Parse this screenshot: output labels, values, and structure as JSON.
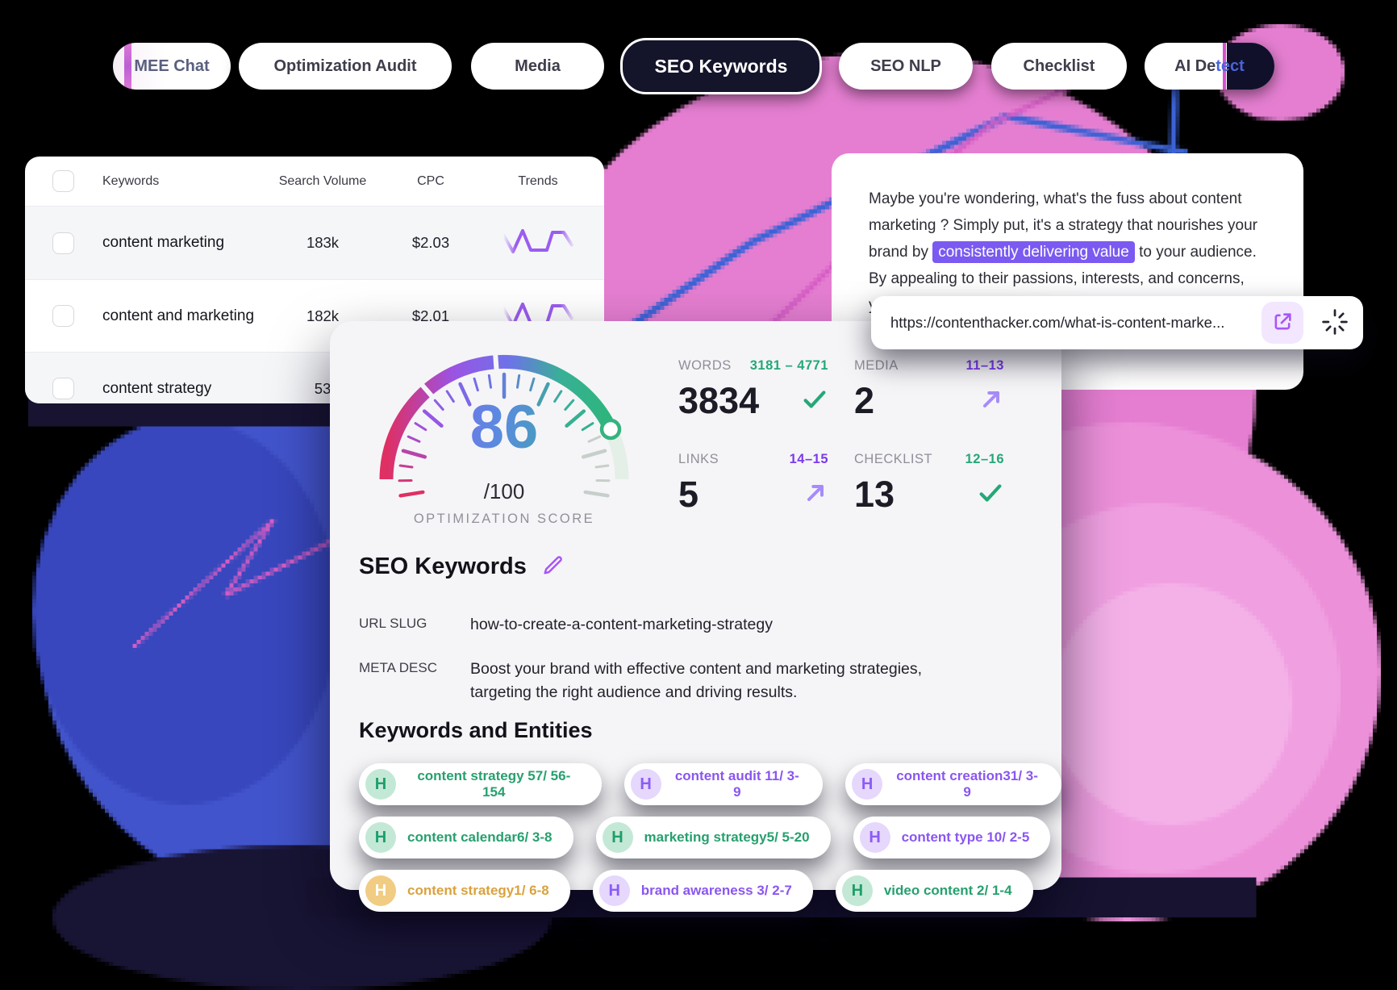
{
  "tabs": [
    {
      "label": "MEE Chat"
    },
    {
      "label": "Optimization Audit"
    },
    {
      "label": "Media"
    },
    {
      "label": "SEO Keywords"
    },
    {
      "label": "SEO NLP"
    },
    {
      "label": "Checklist"
    },
    {
      "label": "AI Detect",
      "glitch_a": "AI De",
      "glitch_b": "tect"
    }
  ],
  "keywords_table": {
    "columns": [
      "Keywords",
      "Search Volume",
      "CPC",
      "Trends"
    ],
    "rows": [
      {
        "keyword": "content marketing",
        "search_volume": "183k",
        "cpc": "$2.03"
      },
      {
        "keyword": "content and marketing",
        "search_volume": "182k",
        "cpc": "$2.01"
      },
      {
        "keyword": "content strategy",
        "search_volume": "53"
      }
    ]
  },
  "article_preview": {
    "text_before": "Maybe you're wondering, what's the fuss about content marketing ? Simply put, it's a strategy that nourishes your brand by ",
    "highlight": "consistently delivering value",
    "text_after": " to your audience. By appealing to their passions, interests, and concerns, you strengthen the bond between you and your customers. In essence, content ma"
  },
  "url_bar": {
    "url": "https://contenthacker.com/what-is-content-marke..."
  },
  "score_card": {
    "gauge": {
      "score": "86",
      "denominator": "/100",
      "label": "OPTIMIZATION SCORE",
      "percent": 86
    },
    "stats": [
      {
        "label": "WORDS",
        "range": "3181 – 4771",
        "value": "3834",
        "status": "check"
      },
      {
        "label": "MEDIA",
        "range": "11–13",
        "value": "2",
        "status": "trend-up"
      },
      {
        "label": "LINKS",
        "range": "14–15",
        "value": "5",
        "status": "trend-up"
      },
      {
        "label": "CHECKLIST",
        "range": "12–16",
        "value": "13",
        "status": "check"
      }
    ],
    "seo_section": {
      "title": "SEO Keywords",
      "url_slug_label": "URL SLUG",
      "url_slug": "how-to-create-a-content-marketing-strategy",
      "meta_desc_label": "META DESC",
      "meta_desc": "Boost your brand with effective content and marketing strategies, targeting the right audience and driving results."
    },
    "entities_section": {
      "title": "Keywords and Entities",
      "icon_letter": "H",
      "rows": [
        [
          {
            "text": "content strategy 57/ 56-154",
            "color": "green"
          },
          {
            "text": "content audit 11/ 3-9",
            "color": "purple"
          },
          {
            "text": "content creation31/ 3-9",
            "color": "purple"
          }
        ],
        [
          {
            "text": "content calendar6/ 3-8",
            "color": "green"
          },
          {
            "text": "marketing strategy5/ 5-20",
            "color": "green"
          },
          {
            "text": "content type 10/ 2-5",
            "color": "purple"
          }
        ],
        [
          {
            "text": "content strategy1/ 6-8",
            "color": "amber"
          },
          {
            "text": "brand awareness 3/ 2-7",
            "color": "purple"
          },
          {
            "text": "video content 2/ 1-4",
            "color": "green"
          }
        ]
      ]
    }
  },
  "icons": {
    "edit": "pencil",
    "check": "checkmark",
    "trend_up": "arrow-up-right",
    "external_link": "open-in-new",
    "spinner": "loading-spinner",
    "sparkline": "trend-sparkline"
  },
  "colors": {
    "accent_purple": "#7a5af0",
    "green": "#25a878",
    "amber": "#d9a23f",
    "pink_blob": "#e57ed1",
    "blue_blob": "#4254cb",
    "active_tab": "#14142b",
    "highlight_bg": "#7a5af0"
  }
}
